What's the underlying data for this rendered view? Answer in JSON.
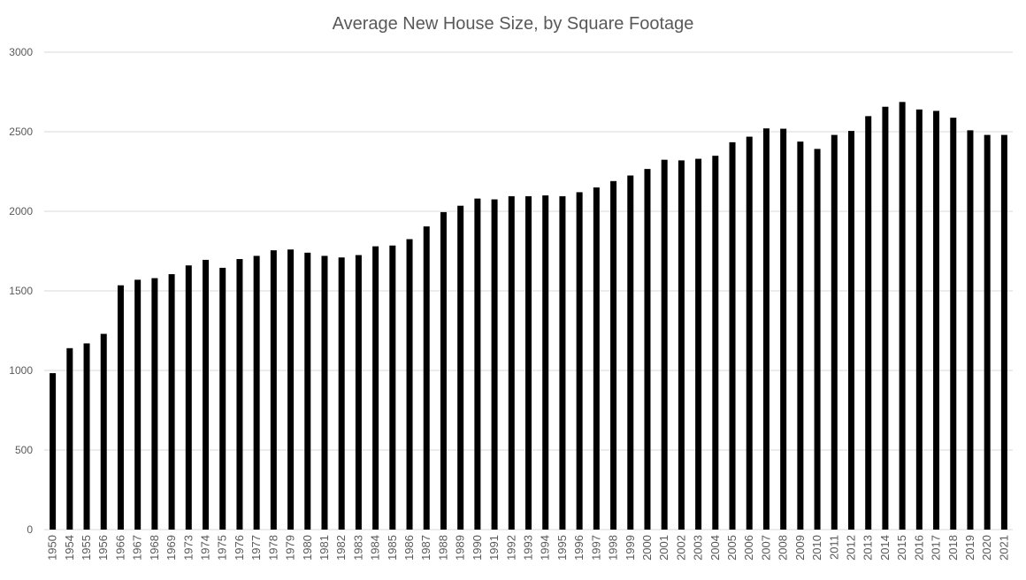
{
  "chart_data": {
    "type": "bar",
    "title": "Average New House Size, by Square Footage",
    "categories": [
      "1950",
      "1954",
      "1955",
      "1956",
      "1966",
      "1967",
      "1968",
      "1969",
      "1973",
      "1974",
      "1975",
      "1976",
      "1977",
      "1978",
      "1979",
      "1980",
      "1981",
      "1982",
      "1983",
      "1984",
      "1985",
      "1986",
      "1987",
      "1988",
      "1989",
      "1990",
      "1991",
      "1992",
      "1993",
      "1994",
      "1995",
      "1996",
      "1997",
      "1998",
      "1999",
      "2000",
      "2001",
      "2002",
      "2003",
      "2004",
      "2005",
      "2006",
      "2007",
      "2008",
      "2009",
      "2010",
      "2011",
      "2012",
      "2013",
      "2014",
      "2015",
      "2016",
      "2017",
      "2018",
      "2019",
      "2020",
      "2021"
    ],
    "values": [
      983,
      1140,
      1170,
      1230,
      1535,
      1570,
      1580,
      1605,
      1660,
      1695,
      1645,
      1700,
      1720,
      1755,
      1760,
      1740,
      1720,
      1710,
      1725,
      1780,
      1785,
      1825,
      1905,
      1995,
      2035,
      2080,
      2075,
      2095,
      2095,
      2100,
      2095,
      2120,
      2150,
      2190,
      2225,
      2266,
      2324,
      2320,
      2330,
      2349,
      2434,
      2469,
      2521,
      2519,
      2438,
      2392,
      2480,
      2505,
      2598,
      2657,
      2687,
      2640,
      2631,
      2588,
      2509,
      2480,
      2480
    ],
    "color": "#000000",
    "ylim": [
      0,
      3000
    ],
    "yticks": [
      0,
      500,
      1000,
      1500,
      2000,
      2500,
      3000
    ],
    "grid": true
  }
}
